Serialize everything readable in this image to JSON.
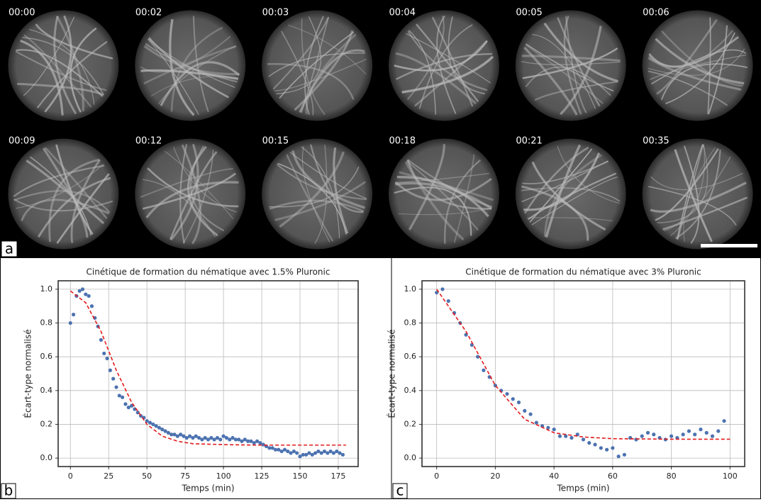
{
  "panel_a": {
    "label": "a",
    "frames": [
      "00:00",
      "00:02",
      "00:03",
      "00:04",
      "00:05",
      "00:06",
      "00:09",
      "00:12",
      "00:15",
      "00:18",
      "00:21",
      "00:35"
    ]
  },
  "chart_data": [
    {
      "type": "scatter",
      "panel_label": "b",
      "title": "Cinétique de formation du nématique avec 1.5% Pluronic",
      "xlabel": "Temps (min)",
      "ylabel": "Écart-type normalisé",
      "xlim": [
        -8,
        188
      ],
      "xticks": [
        0,
        25,
        50,
        75,
        100,
        125,
        150,
        175
      ],
      "ylim": [
        -0.05,
        1.05
      ],
      "yticks": [
        {
          "value": 0,
          "label": "0.0"
        },
        0.2,
        0.4,
        0.6,
        0.8,
        {
          "value": 1,
          "label": "1.0"
        }
      ],
      "grid": true,
      "series": [
        {
          "kind": "points",
          "color": "#4c72b0",
          "x": [
            0,
            2,
            4,
            6,
            8,
            10,
            12,
            14,
            16,
            18,
            20,
            22,
            24,
            26,
            28,
            30,
            32,
            34,
            36,
            38,
            40,
            42,
            44,
            46,
            48,
            50,
            52,
            54,
            56,
            58,
            60,
            62,
            64,
            66,
            68,
            70,
            72,
            74,
            76,
            78,
            80,
            82,
            84,
            86,
            88,
            90,
            92,
            94,
            96,
            98,
            100,
            102,
            104,
            106,
            108,
            110,
            112,
            114,
            116,
            118,
            120,
            122,
            124,
            126,
            128,
            130,
            132,
            134,
            136,
            138,
            140,
            142,
            144,
            146,
            148,
            150,
            152,
            154,
            156,
            158,
            160,
            162,
            164,
            166,
            168,
            170,
            172,
            174,
            176,
            178
          ],
          "values": [
            0.8,
            0.85,
            0.96,
            0.99,
            1.0,
            0.97,
            0.96,
            0.9,
            0.83,
            0.78,
            0.7,
            0.62,
            0.59,
            0.52,
            0.47,
            0.42,
            0.37,
            0.36,
            0.32,
            0.3,
            0.31,
            0.29,
            0.27,
            0.25,
            0.24,
            0.22,
            0.21,
            0.2,
            0.19,
            0.18,
            0.17,
            0.16,
            0.15,
            0.14,
            0.14,
            0.13,
            0.14,
            0.13,
            0.12,
            0.13,
            0.12,
            0.13,
            0.12,
            0.11,
            0.12,
            0.11,
            0.12,
            0.11,
            0.12,
            0.11,
            0.13,
            0.12,
            0.11,
            0.12,
            0.11,
            0.11,
            0.1,
            0.11,
            0.1,
            0.1,
            0.09,
            0.1,
            0.09,
            0.08,
            0.07,
            0.06,
            0.06,
            0.05,
            0.05,
            0.04,
            0.05,
            0.04,
            0.03,
            0.04,
            0.03,
            0.01,
            0.02,
            0.02,
            0.03,
            0.02,
            0.03,
            0.04,
            0.03,
            0.04,
            0.03,
            0.04,
            0.03,
            0.04,
            0.03,
            0.02
          ]
        },
        {
          "kind": "dashed-line",
          "color": "#e41a1c",
          "x": [
            0,
            10,
            20,
            30,
            40,
            50,
            60,
            70,
            80,
            100,
            120,
            140,
            160,
            180
          ],
          "values": [
            0.99,
            0.92,
            0.75,
            0.52,
            0.33,
            0.2,
            0.13,
            0.1,
            0.085,
            0.08,
            0.077,
            0.077,
            0.077,
            0.077
          ]
        }
      ]
    },
    {
      "type": "scatter",
      "panel_label": "c",
      "title": "Cinétique de formation du nématique avec 3% Pluronic",
      "xlabel": "Temps (min)",
      "ylabel": "Écart-type normalisé",
      "xlim": [
        -5,
        105
      ],
      "xticks": [
        0,
        20,
        40,
        60,
        80,
        100
      ],
      "ylim": [
        -0.05,
        1.05
      ],
      "yticks": [
        {
          "value": 0,
          "label": "0.0"
        },
        0.2,
        0.4,
        0.6,
        0.8,
        {
          "value": 1,
          "label": "1.0"
        }
      ],
      "grid": true,
      "series": [
        {
          "kind": "points",
          "color": "#4c72b0",
          "x": [
            0,
            2,
            4,
            6,
            8,
            10,
            12,
            14,
            16,
            18,
            20,
            22,
            24,
            26,
            28,
            30,
            32,
            34,
            36,
            38,
            40,
            42,
            44,
            46,
            48,
            50,
            52,
            54,
            56,
            58,
            60,
            62,
            64,
            66,
            68,
            70,
            72,
            74,
            76,
            78,
            80,
            82,
            84,
            86,
            88,
            90,
            92,
            94,
            96,
            98
          ],
          "values": [
            0.98,
            1.0,
            0.93,
            0.86,
            0.8,
            0.73,
            0.67,
            0.6,
            0.52,
            0.48,
            0.43,
            0.4,
            0.38,
            0.35,
            0.33,
            0.28,
            0.26,
            0.21,
            0.19,
            0.18,
            0.17,
            0.13,
            0.13,
            0.12,
            0.14,
            0.11,
            0.09,
            0.08,
            0.06,
            0.05,
            0.06,
            0.01,
            0.02,
            0.12,
            0.11,
            0.13,
            0.15,
            0.14,
            0.12,
            0.11,
            0.13,
            0.12,
            0.14,
            0.16,
            0.14,
            0.17,
            0.15,
            0.13,
            0.16,
            0.22
          ]
        },
        {
          "kind": "dashed-line",
          "color": "#e41a1c",
          "x": [
            0,
            10,
            20,
            30,
            40,
            50,
            60,
            80,
            100
          ],
          "values": [
            1.0,
            0.75,
            0.43,
            0.23,
            0.15,
            0.125,
            0.115,
            0.112,
            0.112
          ]
        }
      ]
    }
  ]
}
